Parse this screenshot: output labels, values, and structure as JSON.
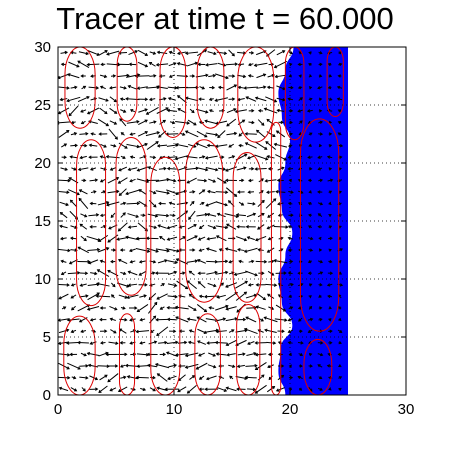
{
  "title": "Tracer at time t = 60.000",
  "colors": {
    "tracer": "#0000ff",
    "contour": "#dd0000",
    "arrows": "#000000",
    "grid": "#000000",
    "background": "#ffffff"
  },
  "chart_data": {
    "type": "heatmap",
    "title": "Tracer at time t = 60.000",
    "xlabel": "",
    "ylabel": "",
    "xlim": [
      0,
      30
    ],
    "ylim": [
      0,
      30
    ],
    "xticks": [
      0,
      10,
      20,
      30
    ],
    "yticks": [
      0,
      5,
      10,
      15,
      20,
      25,
      30
    ],
    "grid": "dotted",
    "layers": [
      "tracer field (blue)",
      "velocity vectors (black arrows)",
      "contours (red)"
    ],
    "tracer_region": {
      "right_edge_x": 25.0,
      "left_boundary": [
        [
          0,
          19.6
        ],
        [
          2,
          19.0
        ],
        [
          4,
          19.2
        ],
        [
          6,
          20.2
        ],
        [
          8,
          19.3
        ],
        [
          10,
          19.0
        ],
        [
          12,
          19.6
        ],
        [
          14,
          20.2
        ],
        [
          16,
          19.3
        ],
        [
          18,
          19.0
        ],
        [
          20,
          19.6
        ],
        [
          22,
          20.0
        ],
        [
          24,
          19.3
        ],
        [
          26,
          19.0
        ],
        [
          28,
          19.6
        ],
        [
          30,
          20.3
        ]
      ]
    },
    "contour_cells": [
      {
        "x0": 0.5,
        "x1": 3.2,
        "y0": 0.0,
        "y1": 6.8
      },
      {
        "x0": 1.6,
        "x1": 4.1,
        "y0": 7.7,
        "y1": 22.0
      },
      {
        "x0": 0.6,
        "x1": 3.2,
        "y0": 23.0,
        "y1": 30.0
      },
      {
        "x0": 5.3,
        "x1": 6.6,
        "y0": 0.0,
        "y1": 7.0
      },
      {
        "x0": 5.0,
        "x1": 7.6,
        "y0": 8.6,
        "y1": 22.2
      },
      {
        "x0": 5.1,
        "x1": 6.8,
        "y0": 23.6,
        "y1": 30.0
      },
      {
        "x0": 8.0,
        "x1": 10.5,
        "y0": 0.0,
        "y1": 20.5
      },
      {
        "x0": 8.8,
        "x1": 11.0,
        "y0": 22.2,
        "y1": 30.0
      },
      {
        "x0": 11.8,
        "x1": 14.0,
        "y0": 0.0,
        "y1": 7.0
      },
      {
        "x0": 11.0,
        "x1": 14.2,
        "y0": 8.0,
        "y1": 22.0
      },
      {
        "x0": 12.0,
        "x1": 14.3,
        "y0": 23.0,
        "y1": 30.0
      },
      {
        "x0": 15.4,
        "x1": 17.4,
        "y0": 0.0,
        "y1": 7.8
      },
      {
        "x0": 15.1,
        "x1": 17.5,
        "y0": 8.0,
        "y1": 20.9
      },
      {
        "x0": 15.5,
        "x1": 18.6,
        "y0": 21.8,
        "y1": 30.0
      },
      {
        "x0": 18.4,
        "x1": 19.2,
        "y0": 0.0,
        "y1": 23.5
      },
      {
        "x0": 20.9,
        "x1": 24.2,
        "y0": 5.5,
        "y1": 23.8
      },
      {
        "x0": 19.6,
        "x1": 21.2,
        "y0": 22.0,
        "y1": 30.0
      },
      {
        "x0": 23.2,
        "x1": 24.6,
        "y0": 24.0,
        "y1": 30.0
      },
      {
        "x0": 21.2,
        "x1": 23.6,
        "y0": 0.0,
        "y1": 4.8
      }
    ],
    "arrow_grid": {
      "x_spacing": 0.85,
      "y_spacing": 1.0,
      "x_max": 24.5
    }
  }
}
